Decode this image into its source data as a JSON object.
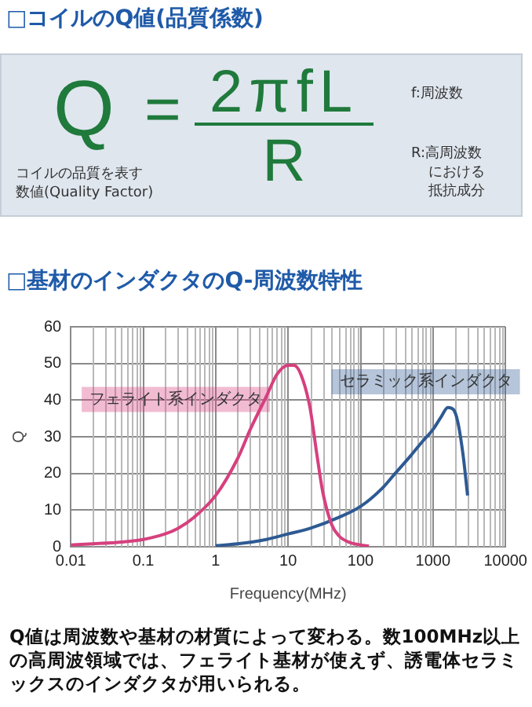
{
  "chart_data": {
    "type": "line",
    "title": "□基材のインダクタのQ-周波数特性",
    "xlabel": "Frequency(MHz)",
    "ylabel": "Q",
    "annotations": [
      "□コイルのQ値(品質係数)",
      "Q",
      "=",
      "2πfL",
      "R",
      "コイルの品質を表す",
      "数値(Quality Factor)",
      "f:周波数",
      "R:高周波数",
      "における",
      "抵抗成分",
      "Q値は周波数や基材の材質によって変わる。数100MHz以上の高周波領域では、フェライト基材が使えず、誘電体セラミックスのインダクタが用いられる。"
    ],
    "log": "x",
    "xlim": [
      0.01,
      10000
    ],
    "xticks": [
      0.01,
      0.1,
      1,
      10,
      100,
      1000,
      10000
    ],
    "ylim": [
      0,
      60
    ],
    "yticks": [
      0,
      10,
      20,
      30,
      40,
      50,
      60
    ],
    "grid": true,
    "legend": false,
    "marker": "none",
    "line_style": "solid",
    "series": [
      {
        "name": "フェライト系インダクタ",
        "color": "#d6407e",
        "x": [
          0.01,
          0.02,
          0.05,
          0.1,
          0.2,
          0.3,
          0.5,
          1,
          2,
          3,
          5,
          7,
          10,
          12,
          15,
          20,
          25,
          30,
          40,
          50,
          70,
          100,
          130
        ],
        "values": [
          0.5,
          0.8,
          1.3,
          2,
          3.5,
          5,
          8,
          14,
          24,
          32,
          41,
          47,
          49.5,
          49.5,
          47,
          38,
          25,
          15,
          6,
          3,
          1.2,
          0.5,
          0.2
        ]
      },
      {
        "name": "セラミック系インダクタ",
        "color": "#2e5a93",
        "x": [
          1,
          2,
          5,
          10,
          20,
          50,
          100,
          200,
          300,
          500,
          700,
          1000,
          1300,
          1600,
          1900,
          2200,
          2600,
          3000
        ],
        "values": [
          0.3,
          0.8,
          2,
          3.5,
          5,
          8,
          11,
          16,
          20,
          25,
          28.5,
          32,
          35.5,
          38,
          37.5,
          34,
          25,
          14
        ]
      }
    ]
  }
}
